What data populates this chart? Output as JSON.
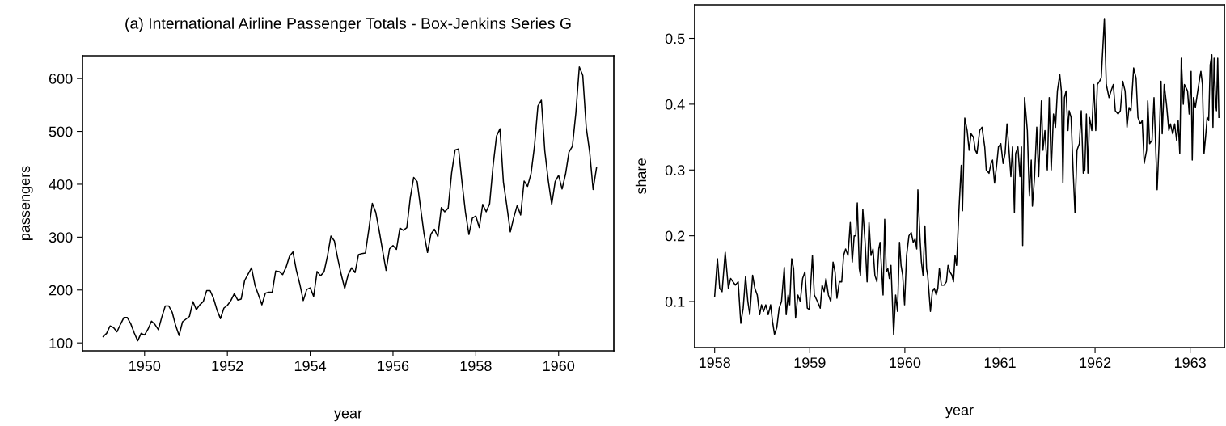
{
  "chart_data": [
    {
      "type": "line",
      "title": "(a) International Airline Passenger Totals - Box-Jenkins Series G",
      "xlabel": "year",
      "ylabel": "passengers",
      "color": "#000000",
      "x": [
        "1949-01",
        "1949-02",
        "1949-03",
        "1949-04",
        "1949-05",
        "1949-06",
        "1949-07",
        "1949-08",
        "1949-09",
        "1949-10",
        "1949-11",
        "1949-12",
        "1950-01",
        "1950-02",
        "1950-03",
        "1950-04",
        "1950-05",
        "1950-06",
        "1950-07",
        "1950-08",
        "1950-09",
        "1950-10",
        "1950-11",
        "1950-12",
        "1951-01",
        "1951-02",
        "1951-03",
        "1951-04",
        "1951-05",
        "1951-06",
        "1951-07",
        "1951-08",
        "1951-09",
        "1951-10",
        "1951-11",
        "1951-12",
        "1952-01",
        "1952-02",
        "1952-03",
        "1952-04",
        "1952-05",
        "1952-06",
        "1952-07",
        "1952-08",
        "1952-09",
        "1952-10",
        "1952-11",
        "1952-12",
        "1953-01",
        "1953-02",
        "1953-03",
        "1953-04",
        "1953-05",
        "1953-06",
        "1953-07",
        "1953-08",
        "1953-09",
        "1953-10",
        "1953-11",
        "1953-12",
        "1954-01",
        "1954-02",
        "1954-03",
        "1954-04",
        "1954-05",
        "1954-06",
        "1954-07",
        "1954-08",
        "1954-09",
        "1954-10",
        "1954-11",
        "1954-12",
        "1955-01",
        "1955-02",
        "1955-03",
        "1955-04",
        "1955-05",
        "1955-06",
        "1955-07",
        "1955-08",
        "1955-09",
        "1955-10",
        "1955-11",
        "1955-12",
        "1956-01",
        "1956-02",
        "1956-03",
        "1956-04",
        "1956-05",
        "1956-06",
        "1956-07",
        "1956-08",
        "1956-09",
        "1956-10",
        "1956-11",
        "1956-12",
        "1957-01",
        "1957-02",
        "1957-03",
        "1957-04",
        "1957-05",
        "1957-06",
        "1957-07",
        "1957-08",
        "1957-09",
        "1957-10",
        "1957-11",
        "1957-12",
        "1958-01",
        "1958-02",
        "1958-03",
        "1958-04",
        "1958-05",
        "1958-06",
        "1958-07",
        "1958-08",
        "1958-09",
        "1958-10",
        "1958-11",
        "1958-12",
        "1959-01",
        "1959-02",
        "1959-03",
        "1959-04",
        "1959-05",
        "1959-06",
        "1959-07",
        "1959-08",
        "1959-09",
        "1959-10",
        "1959-11",
        "1959-12",
        "1960-01",
        "1960-02",
        "1960-03",
        "1960-04",
        "1960-05",
        "1960-06",
        "1960-07",
        "1960-08",
        "1960-09",
        "1960-10",
        "1960-11",
        "1960-12"
      ],
      "values": [
        112,
        118,
        132,
        129,
        121,
        135,
        148,
        148,
        136,
        119,
        104,
        118,
        115,
        126,
        141,
        135,
        125,
        149,
        170,
        170,
        158,
        133,
        114,
        140,
        145,
        150,
        178,
        163,
        172,
        178,
        199,
        199,
        184,
        162,
        146,
        166,
        171,
        180,
        193,
        181,
        183,
        218,
        230,
        242,
        209,
        191,
        172,
        194,
        196,
        196,
        236,
        235,
        229,
        243,
        264,
        272,
        237,
        211,
        180,
        201,
        204,
        188,
        235,
        227,
        234,
        264,
        302,
        293,
        259,
        229,
        203,
        229,
        242,
        233,
        267,
        269,
        270,
        315,
        364,
        347,
        312,
        274,
        237,
        278,
        284,
        277,
        317,
        313,
        318,
        374,
        413,
        405,
        355,
        306,
        271,
        306,
        315,
        301,
        356,
        348,
        355,
        422,
        465,
        467,
        404,
        347,
        305,
        336,
        340,
        318,
        362,
        348,
        363,
        435,
        491,
        505,
        404,
        359,
        310,
        337,
        360,
        342,
        406,
        396,
        420,
        472,
        548,
        559,
        463,
        407,
        362,
        405,
        417,
        391,
        419,
        461,
        472,
        535,
        622,
        606,
        508,
        461,
        390,
        432
      ],
      "xlim": [
        "1948-07",
        "1961-05"
      ],
      "xticks": [
        "1950",
        "1952",
        "1954",
        "1956",
        "1958",
        "1960"
      ],
      "ylim": [
        85,
        643
      ],
      "yticks": [
        100,
        200,
        300,
        400,
        500,
        600
      ]
    },
    {
      "type": "line",
      "xlabel": "year",
      "ylabel": "share",
      "color": "#000000",
      "x": [
        1958.0,
        1958.029,
        1958.053,
        1958.078,
        1958.111,
        1958.144,
        1958.168,
        1958.193,
        1958.218,
        1958.247,
        1958.275,
        1958.3,
        1958.325,
        1958.349,
        1958.37,
        1958.399,
        1958.423,
        1958.448,
        1958.473,
        1958.493,
        1958.514,
        1958.538,
        1958.563,
        1958.588,
        1958.608,
        1958.629,
        1958.653,
        1958.678,
        1958.703,
        1958.732,
        1958.752,
        1958.773,
        1958.789,
        1958.81,
        1958.83,
        1958.851,
        1958.875,
        1958.9,
        1958.925,
        1958.949,
        1958.974,
        1958.995,
        1959.028,
        1959.048,
        1959.081,
        1959.11,
        1959.13,
        1959.151,
        1959.171,
        1959.196,
        1959.221,
        1959.245,
        1959.266,
        1959.286,
        1959.311,
        1959.336,
        1959.356,
        1959.377,
        1959.402,
        1959.426,
        1959.447,
        1959.467,
        1959.484,
        1959.5,
        1959.521,
        1959.533,
        1959.558,
        1959.582,
        1959.603,
        1959.623,
        1959.644,
        1959.665,
        1959.685,
        1959.706,
        1959.726,
        1959.739,
        1959.771,
        1959.788,
        1959.804,
        1959.821,
        1959.837,
        1959.854,
        1959.882,
        1959.903,
        1959.923,
        1959.944,
        1959.96,
        1959.977,
        1959.997,
        1960.018,
        1960.043,
        1960.067,
        1960.088,
        1960.108,
        1960.125,
        1960.137,
        1960.158,
        1960.174,
        1960.191,
        1960.211,
        1960.228,
        1960.24,
        1960.269,
        1960.289,
        1960.31,
        1960.33,
        1960.347,
        1960.363,
        1960.384,
        1960.413,
        1960.437,
        1960.454,
        1960.474,
        1960.495,
        1960.511,
        1960.528,
        1960.544,
        1960.569,
        1960.593,
        1960.606,
        1960.63,
        1960.655,
        1960.676,
        1960.696,
        1960.721,
        1960.741,
        1960.758,
        1960.787,
        1960.811,
        1960.84,
        1960.856,
        1960.885,
        1960.906,
        1960.922,
        1960.943,
        1960.967,
        1960.984,
        1961.009,
        1961.033,
        1961.054,
        1961.074,
        1961.095,
        1961.115,
        1961.132,
        1961.152,
        1961.165,
        1961.189,
        1961.21,
        1961.226,
        1961.239,
        1961.259,
        1961.288,
        1961.309,
        1961.329,
        1961.341,
        1961.362,
        1961.387,
        1961.407,
        1961.436,
        1961.452,
        1961.473,
        1961.498,
        1961.518,
        1961.539,
        1961.563,
        1961.584,
        1961.604,
        1961.629,
        1961.646,
        1961.662,
        1961.678,
        1961.695,
        1961.715,
        1961.728,
        1961.748,
        1961.769,
        1961.789,
        1961.81,
        1961.835,
        1961.855,
        1961.876,
        1961.892,
        1961.909,
        1961.925,
        1961.941,
        1961.966,
        1961.987,
        1962.007,
        1962.024,
        1962.048,
        1962.065,
        1962.098,
        1962.118,
        1962.147,
        1962.168,
        1962.192,
        1962.213,
        1962.242,
        1962.266,
        1962.291,
        1962.316,
        1962.336,
        1962.357,
        1962.377,
        1962.406,
        1962.431,
        1962.451,
        1962.476,
        1962.496,
        1962.517,
        1962.542,
        1962.554,
        1962.574,
        1962.599,
        1962.62,
        1962.653,
        1962.673,
        1962.694,
        1962.706,
        1962.727,
        1962.751,
        1962.776,
        1962.792,
        1962.817,
        1962.837,
        1962.858,
        1962.874,
        1962.891,
        1962.907,
        1962.928,
        1962.94,
        1962.957,
        1962.973,
        1962.99,
        1963.01,
        1963.022,
        1963.035,
        1963.055,
        1963.08,
        1963.101,
        1963.113,
        1963.129,
        1963.146,
        1963.162,
        1963.179,
        1963.195,
        1963.211,
        1963.228,
        1963.24,
        1963.252,
        1963.269,
        1963.277,
        1963.29,
        1963.302
      ],
      "values": [
        0.108,
        0.165,
        0.12,
        0.115,
        0.175,
        0.12,
        0.135,
        0.13,
        0.125,
        0.13,
        0.067,
        0.09,
        0.138,
        0.1,
        0.08,
        0.14,
        0.12,
        0.11,
        0.08,
        0.095,
        0.085,
        0.095,
        0.08,
        0.095,
        0.07,
        0.05,
        0.06,
        0.09,
        0.1,
        0.152,
        0.08,
        0.11,
        0.095,
        0.165,
        0.15,
        0.075,
        0.11,
        0.1,
        0.135,
        0.145,
        0.09,
        0.088,
        0.17,
        0.11,
        0.1,
        0.09,
        0.125,
        0.115,
        0.135,
        0.11,
        0.1,
        0.16,
        0.145,
        0.105,
        0.13,
        0.13,
        0.17,
        0.18,
        0.17,
        0.22,
        0.16,
        0.2,
        0.2,
        0.25,
        0.15,
        0.14,
        0.24,
        0.19,
        0.13,
        0.22,
        0.17,
        0.18,
        0.14,
        0.13,
        0.18,
        0.19,
        0.11,
        0.225,
        0.145,
        0.15,
        0.135,
        0.155,
        0.05,
        0.11,
        0.085,
        0.19,
        0.155,
        0.14,
        0.095,
        0.17,
        0.2,
        0.205,
        0.19,
        0.195,
        0.18,
        0.27,
        0.2,
        0.16,
        0.14,
        0.215,
        0.15,
        0.14,
        0.085,
        0.115,
        0.12,
        0.11,
        0.12,
        0.15,
        0.125,
        0.125,
        0.13,
        0.155,
        0.145,
        0.14,
        0.13,
        0.17,
        0.155,
        0.24,
        0.307,
        0.238,
        0.379,
        0.36,
        0.33,
        0.355,
        0.35,
        0.33,
        0.325,
        0.36,
        0.365,
        0.335,
        0.3,
        0.295,
        0.31,
        0.315,
        0.28,
        0.31,
        0.335,
        0.34,
        0.31,
        0.325,
        0.37,
        0.33,
        0.29,
        0.335,
        0.235,
        0.325,
        0.335,
        0.29,
        0.335,
        0.185,
        0.41,
        0.36,
        0.26,
        0.315,
        0.245,
        0.285,
        0.365,
        0.29,
        0.405,
        0.33,
        0.36,
        0.3,
        0.41,
        0.3,
        0.385,
        0.365,
        0.42,
        0.445,
        0.42,
        0.28,
        0.41,
        0.42,
        0.36,
        0.39,
        0.38,
        0.3,
        0.235,
        0.33,
        0.34,
        0.39,
        0.295,
        0.3,
        0.385,
        0.295,
        0.38,
        0.36,
        0.43,
        0.36,
        0.43,
        0.435,
        0.44,
        0.53,
        0.43,
        0.41,
        0.42,
        0.43,
        0.39,
        0.385,
        0.39,
        0.435,
        0.42,
        0.365,
        0.395,
        0.39,
        0.455,
        0.44,
        0.38,
        0.37,
        0.375,
        0.31,
        0.33,
        0.405,
        0.34,
        0.345,
        0.41,
        0.27,
        0.34,
        0.435,
        0.355,
        0.43,
        0.4,
        0.36,
        0.37,
        0.355,
        0.37,
        0.345,
        0.375,
        0.325,
        0.47,
        0.4,
        0.43,
        0.425,
        0.42,
        0.385,
        0.45,
        0.315,
        0.41,
        0.395,
        0.42,
        0.44,
        0.45,
        0.43,
        0.325,
        0.35,
        0.38,
        0.375,
        0.46,
        0.475,
        0.365,
        0.47,
        0.4,
        0.39,
        0.47,
        0.38
      ],
      "xlim": [
        1957.79,
        1963.36
      ],
      "xticks": [
        1958,
        1959,
        1960,
        1961,
        1962,
        1963
      ],
      "ylim": [
        0.03,
        0.551
      ],
      "yticks": [
        0.1,
        0.2,
        0.3,
        0.4,
        0.5
      ]
    }
  ]
}
